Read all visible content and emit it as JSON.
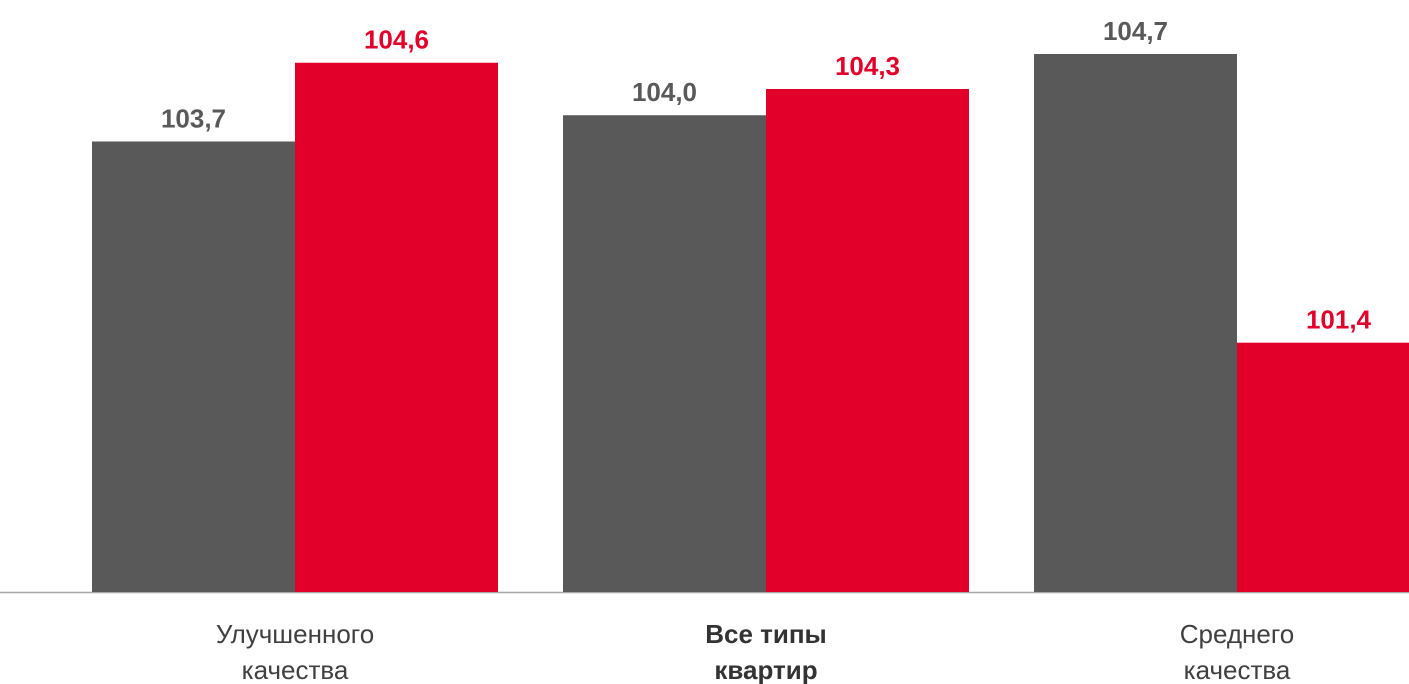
{
  "chart_data": {
    "type": "bar",
    "categories": [
      {
        "lines": [
          "Улучшенного",
          "качества"
        ],
        "bold": false
      },
      {
        "lines": [
          "Все типы",
          "квартир"
        ],
        "bold": true
      },
      {
        "lines": [
          "Среднего",
          "качества"
        ],
        "bold": false
      }
    ],
    "series": [
      {
        "values": [
          103.7,
          104.0,
          104.7
        ],
        "labels": [
          "103,7",
          "104,0",
          "104,7"
        ],
        "color": "#595959",
        "label_color": "#595959"
      },
      {
        "values": [
          104.6,
          104.3,
          101.4
        ],
        "labels": [
          "104,6",
          "104,3",
          "101,4"
        ],
        "color": "#e2002b",
        "label_color": "#e2002b"
      }
    ],
    "title": "",
    "xlabel": "",
    "ylabel": "",
    "ylim": [
      98.55,
      104.7
    ],
    "grid": false,
    "legend": "none",
    "axis_color": "#a6a6a6"
  }
}
